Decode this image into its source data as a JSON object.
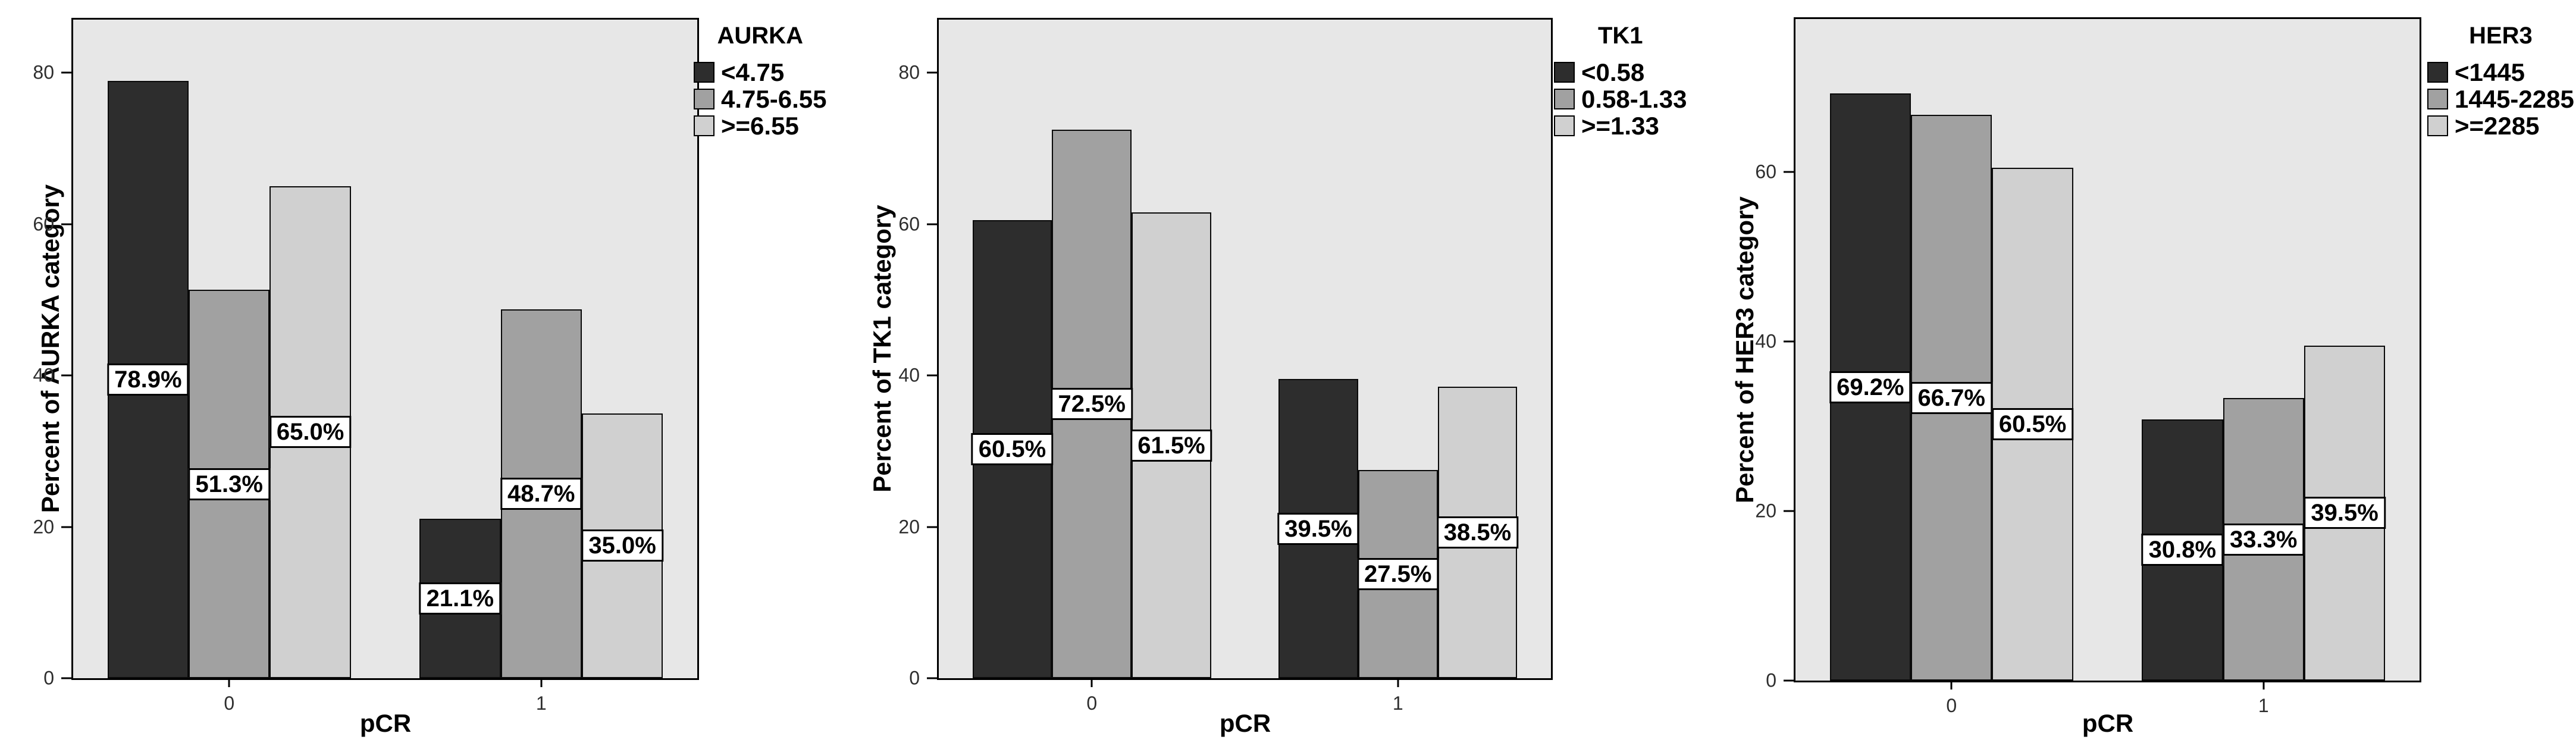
{
  "colors": {
    "dark": "#2d2d2d",
    "medium": "#a1a1a1",
    "light": "#d0d0d0",
    "plot_background": "#e7e7e7",
    "axis": "#000000",
    "label_box_background": "#ffffff"
  },
  "chart_data": [
    {
      "type": "bar",
      "legend_title": "AURKA",
      "ylabel": "Percent of AURKA category",
      "xlabel": "pCR",
      "categories": [
        "0",
        "1"
      ],
      "yticks": [
        0,
        20,
        40,
        60,
        80
      ],
      "ylim": [
        0,
        87
      ],
      "legend_position": "top-right",
      "grid": false,
      "series": [
        {
          "name": "<4.75",
          "color_key": "dark",
          "values": [
            78.9,
            21.1
          ],
          "labels": [
            "78.9%",
            "21.1%"
          ]
        },
        {
          "name": "4.75-6.55",
          "color_key": "medium",
          "values": [
            51.3,
            48.7
          ],
          "labels": [
            "51.3%",
            "48.7%"
          ]
        },
        {
          "name": ">=6.55",
          "color_key": "light",
          "values": [
            65.0,
            35.0
          ],
          "labels": [
            "65.0%",
            "35.0%"
          ]
        }
      ]
    },
    {
      "type": "bar",
      "legend_title": "TK1",
      "ylabel": "Percent of TK1 category",
      "xlabel": "pCR",
      "categories": [
        "0",
        "1"
      ],
      "yticks": [
        0,
        20,
        40,
        60,
        80
      ],
      "ylim": [
        0,
        87
      ],
      "legend_position": "top-right",
      "grid": false,
      "series": [
        {
          "name": "<0.58",
          "color_key": "dark",
          "values": [
            60.5,
            39.5
          ],
          "labels": [
            "60.5%",
            "39.5%"
          ]
        },
        {
          "name": "0.58-1.33",
          "color_key": "medium",
          "values": [
            72.5,
            27.5
          ],
          "labels": [
            "72.5%",
            "27.5%"
          ]
        },
        {
          "name": ">=1.33",
          "color_key": "light",
          "values": [
            61.5,
            38.5
          ],
          "labels": [
            "61.5%",
            "38.5%"
          ]
        }
      ]
    },
    {
      "type": "bar",
      "legend_title": "HER3",
      "ylabel": "Percent of HER3 category",
      "xlabel": "pCR",
      "categories": [
        "0",
        "1"
      ],
      "yticks": [
        0,
        20,
        40,
        60
      ],
      "ylim": [
        0,
        78
      ],
      "legend_position": "top-right",
      "grid": false,
      "series": [
        {
          "name": "<1445",
          "color_key": "dark",
          "values": [
            69.2,
            30.8
          ],
          "labels": [
            "69.2%",
            "30.8%"
          ]
        },
        {
          "name": "1445-2285",
          "color_key": "medium",
          "values": [
            66.7,
            33.3
          ],
          "labels": [
            "66.7%",
            "33.3%"
          ]
        },
        {
          "name": ">=2285",
          "color_key": "light",
          "values": [
            60.5,
            39.5
          ],
          "labels": [
            "60.5%",
            "39.5%"
          ]
        }
      ]
    }
  ]
}
